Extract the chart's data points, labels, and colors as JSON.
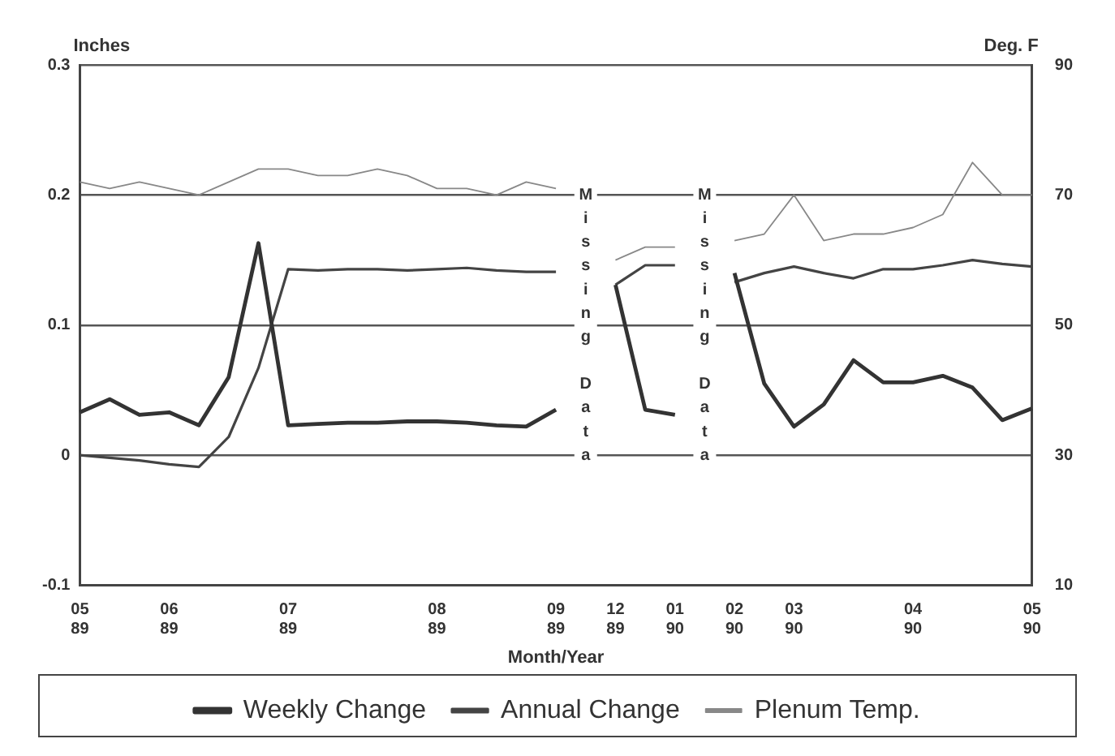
{
  "chart_data": {
    "type": "line",
    "xlabel": "Month/Year",
    "ylabel": "Inches",
    "y2label": "Deg. F",
    "categories": [
      "05 89",
      null,
      null,
      "06 89",
      null,
      null,
      null,
      "07 89",
      null,
      null,
      null,
      null,
      "08 89",
      null,
      null,
      null,
      "09 89",
      null,
      "12 89",
      null,
      "01 90",
      null,
      "02 90",
      null,
      "03 90",
      null,
      null,
      null,
      "04 90",
      null,
      null,
      null,
      "05 90"
    ],
    "series": [
      {
        "name": "Weekly Change",
        "color": "#333333",
        "values": [
          0.033,
          0.043,
          0.031,
          0.033,
          0.023,
          0.06,
          0.163,
          0.023,
          0.024,
          0.025,
          0.025,
          0.026,
          0.026,
          0.025,
          0.023,
          0.022,
          0.035,
          null,
          0.131,
          0.035,
          0.031,
          null,
          0.14,
          0.055,
          0.022,
          0.039,
          0.073,
          0.056,
          0.056,
          0.061,
          0.052,
          0.027,
          0.036
        ]
      },
      {
        "name": "Annual Change",
        "color": "#444444",
        "values": [
          0,
          -0.002,
          -0.004,
          -0.007,
          -0.009,
          0.014,
          0.067,
          0.143,
          0.142,
          0.143,
          0.143,
          0.142,
          0.143,
          0.144,
          0.142,
          0.141,
          0.141,
          null,
          0.131,
          0.146,
          0.146,
          null,
          0.133,
          0.14,
          0.145,
          0.14,
          0.136,
          0.143,
          0.143,
          0.146,
          0.15,
          0.147,
          0.145
        ]
      },
      {
        "name": "Plenum Temp.",
        "color": "#888888",
        "axis": "y2",
        "values": [
          72,
          71,
          72,
          71,
          70,
          72,
          74,
          74,
          73,
          73,
          74,
          73,
          71,
          71,
          70,
          72,
          71,
          null,
          60,
          62,
          62,
          null,
          63,
          64,
          70,
          63,
          64,
          64,
          65,
          67,
          75,
          70,
          70
        ]
      }
    ],
    "ylim": [
      -0.1,
      0.3
    ],
    "yticks": [
      -0.1,
      0,
      0.1,
      0.2,
      0.3
    ],
    "y2lim": [
      10,
      90
    ],
    "y2ticks": [
      10,
      30,
      50,
      70,
      90
    ],
    "grid": "y",
    "legend": "bottom",
    "marker": "none",
    "line_style": "solid",
    "annotations": [
      "Missing Data",
      "Missing Data"
    ]
  }
}
